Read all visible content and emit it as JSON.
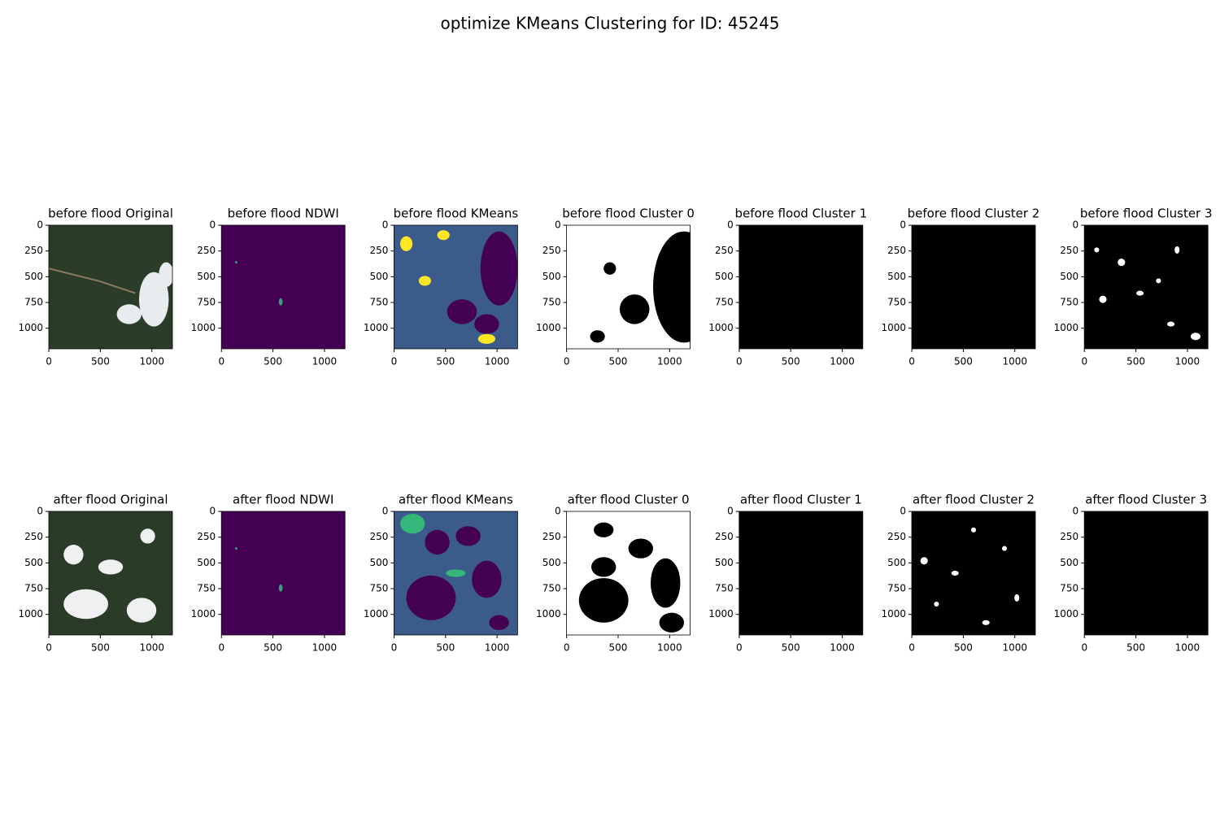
{
  "figure_title": "optimize KMeans Clustering for ID: 45245",
  "chart_data": [
    {
      "type": "image",
      "title": "before flood Original",
      "xlim": [
        -0.5,
        1199.5
      ],
      "ylim": [
        1199.5,
        -0.5
      ],
      "xticks": [
        0,
        500,
        1000
      ],
      "yticks": [
        0,
        250,
        500,
        750,
        1000
      ]
    },
    {
      "type": "image",
      "title": "before flood NDWI",
      "xlim": [
        -0.5,
        1199.5
      ],
      "ylim": [
        1199.5,
        -0.5
      ],
      "xticks": [
        0,
        500,
        1000
      ],
      "yticks": [
        0,
        250,
        500,
        750,
        1000
      ]
    },
    {
      "type": "image",
      "title": "before flood KMeans",
      "xlim": [
        -0.5,
        1199.5
      ],
      "ylim": [
        1199.5,
        -0.5
      ],
      "xticks": [
        0,
        500,
        1000
      ],
      "yticks": [
        0,
        250,
        500,
        750,
        1000
      ]
    },
    {
      "type": "image",
      "title": "before flood Cluster 0",
      "xlim": [
        -0.5,
        1199.5
      ],
      "ylim": [
        1199.5,
        -0.5
      ],
      "xticks": [
        0,
        500,
        1000
      ],
      "yticks": [
        0,
        250,
        500,
        750,
        1000
      ]
    },
    {
      "type": "image",
      "title": "before flood Cluster 1",
      "xlim": [
        -0.5,
        1199.5
      ],
      "ylim": [
        1199.5,
        -0.5
      ],
      "xticks": [
        0,
        500,
        1000
      ],
      "yticks": [
        0,
        250,
        500,
        750,
        1000
      ]
    },
    {
      "type": "image",
      "title": "before flood Cluster 2",
      "xlim": [
        -0.5,
        1199.5
      ],
      "ylim": [
        1199.5,
        -0.5
      ],
      "xticks": [
        0,
        500,
        1000
      ],
      "yticks": [
        0,
        250,
        500,
        750,
        1000
      ]
    },
    {
      "type": "image",
      "title": "before flood Cluster 3",
      "xlim": [
        -0.5,
        1199.5
      ],
      "ylim": [
        1199.5,
        -0.5
      ],
      "xticks": [
        0,
        500,
        1000
      ],
      "yticks": [
        0,
        250,
        500,
        750,
        1000
      ]
    },
    {
      "type": "image",
      "title": "after flood Original",
      "xlim": [
        -0.5,
        1199.5
      ],
      "ylim": [
        1199.5,
        -0.5
      ],
      "xticks": [
        0,
        500,
        1000
      ],
      "yticks": [
        0,
        250,
        500,
        750,
        1000
      ]
    },
    {
      "type": "image",
      "title": "after flood NDWI",
      "xlim": [
        -0.5,
        1199.5
      ],
      "ylim": [
        1199.5,
        -0.5
      ],
      "xticks": [
        0,
        500,
        1000
      ],
      "yticks": [
        0,
        250,
        500,
        750,
        1000
      ]
    },
    {
      "type": "image",
      "title": "after flood KMeans",
      "xlim": [
        -0.5,
        1199.5
      ],
      "ylim": [
        1199.5,
        -0.5
      ],
      "xticks": [
        0,
        500,
        1000
      ],
      "yticks": [
        0,
        250,
        500,
        750,
        1000
      ]
    },
    {
      "type": "image",
      "title": "after flood Cluster 0",
      "xlim": [
        -0.5,
        1199.5
      ],
      "ylim": [
        1199.5,
        -0.5
      ],
      "xticks": [
        0,
        500,
        1000
      ],
      "yticks": [
        0,
        250,
        500,
        750,
        1000
      ]
    },
    {
      "type": "image",
      "title": "after flood Cluster 1",
      "xlim": [
        -0.5,
        1199.5
      ],
      "ylim": [
        1199.5,
        -0.5
      ],
      "xticks": [
        0,
        500,
        1000
      ],
      "yticks": [
        0,
        250,
        500,
        750,
        1000
      ]
    },
    {
      "type": "image",
      "title": "after flood Cluster 2",
      "xlim": [
        -0.5,
        1199.5
      ],
      "ylim": [
        1199.5,
        -0.5
      ],
      "xticks": [
        0,
        500,
        1000
      ],
      "yticks": [
        0,
        250,
        500,
        750,
        1000
      ]
    },
    {
      "type": "image",
      "title": "after flood Cluster 3",
      "xlim": [
        -0.5,
        1199.5
      ],
      "ylim": [
        1199.5,
        -0.5
      ],
      "xticks": [
        0,
        500,
        1000
      ],
      "yticks": [
        0,
        250,
        500,
        750,
        1000
      ]
    }
  ]
}
